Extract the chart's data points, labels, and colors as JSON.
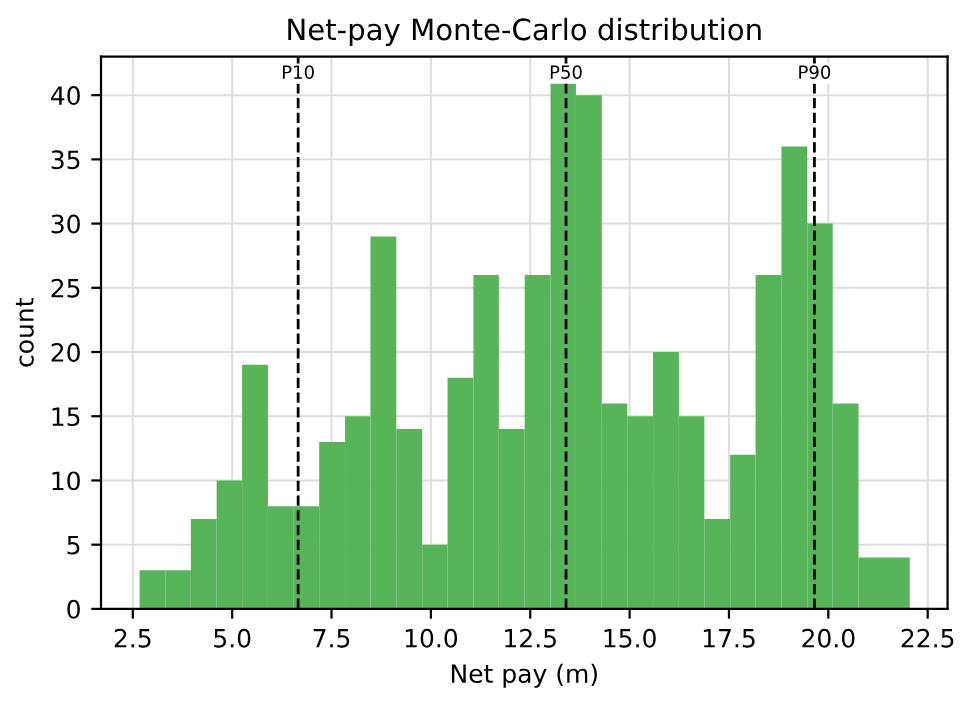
{
  "chart_data": {
    "type": "histogram",
    "title": "Net-pay Monte-Carlo distribution",
    "xlabel": "Net pay (m)",
    "ylabel": "count",
    "bins": [
      2.67,
      3.32,
      3.96,
      4.61,
      5.25,
      5.9,
      6.55,
      7.19,
      7.84,
      8.48,
      9.13,
      9.78,
      10.42,
      11.07,
      11.71,
      12.36,
      13.01,
      13.65,
      14.3,
      14.94,
      15.59,
      16.24,
      16.88,
      17.53,
      18.17,
      18.82,
      19.47,
      20.11,
      20.76,
      21.4,
      22.05
    ],
    "values": [
      3,
      3,
      7,
      10,
      19,
      8,
      8,
      13,
      15,
      29,
      14,
      5,
      18,
      26,
      14,
      26,
      41,
      40,
      16,
      15,
      20,
      15,
      7,
      12,
      26,
      36,
      30,
      16,
      4,
      4
    ],
    "color": "#58b458",
    "xlim": [
      1.7,
      23.0
    ],
    "ylim": [
      0,
      43
    ],
    "xticks": [
      2.5,
      {
        "value": 5,
        "label": "5.0"
      },
      7.5,
      {
        "value": 10,
        "label": "10.0"
      },
      12.5,
      {
        "value": 15,
        "label": "15.0"
      },
      17.5,
      {
        "value": 20,
        "label": "20.0"
      },
      22.5
    ],
    "yticks": [
      0,
      5,
      10,
      15,
      20,
      25,
      30,
      35,
      40
    ],
    "grid": true,
    "ref_lines": [
      {
        "axis": "x",
        "value": 6.66,
        "label": "P10",
        "color": "#000000",
        "line_style": "dashed"
      },
      {
        "axis": "x",
        "value": 13.4,
        "label": "P50",
        "color": "#000000",
        "line_style": "dashed"
      },
      {
        "axis": "x",
        "value": 19.65,
        "label": "P90",
        "color": "#000000",
        "line_style": "dashed"
      }
    ]
  }
}
